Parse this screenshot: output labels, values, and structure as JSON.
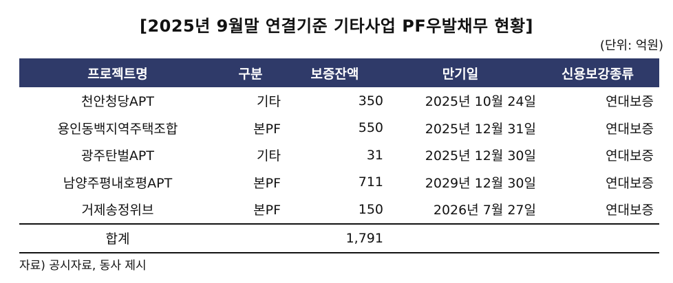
{
  "title": "[2025년 9월말 연결기준 기타사업 PF우발채무 현황]",
  "unit": "(단위: 억원)",
  "table": {
    "headers": [
      "프로젝트명",
      "구분",
      "보증잔액",
      "만기일",
      "신용보강종류"
    ],
    "rows": [
      {
        "project": "천안청당APT",
        "type": "기타",
        "balance": "350",
        "maturity": "2025년 10월 24일",
        "guarantee": "연대보증"
      },
      {
        "project": "용인동백지역주택조합",
        "type": "본PF",
        "balance": "550",
        "maturity": "2025년 12월 31일",
        "guarantee": "연대보증"
      },
      {
        "project": "광주탄벌APT",
        "type": "기타",
        "balance": "31",
        "maturity": "2025년 12월 30일",
        "guarantee": "연대보증"
      },
      {
        "project": "남양주평내호평APT",
        "type": "본PF",
        "balance": "711",
        "maturity": "2029년 12월 30일",
        "guarantee": "연대보증"
      },
      {
        "project": "거제송정위브",
        "type": "본PF",
        "balance": "150",
        "maturity": "2026년 7월 27일",
        "guarantee": "연대보증"
      }
    ],
    "total": {
      "label": "합계",
      "balance": "1,791"
    }
  },
  "source": "자료) 공시자료, 동사 제시",
  "colors": {
    "header_bg": "#2f3a69",
    "header_text": "#ffffff"
  }
}
